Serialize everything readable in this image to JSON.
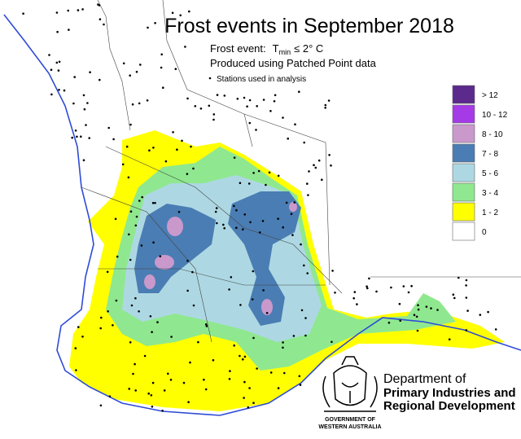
{
  "title": "Frost events in September 2018",
  "subtitle": {
    "lead": "Frost event:",
    "symbol": "T",
    "subscript": "min",
    "condition": "≤ 2° C"
  },
  "source": "Produced using Patched Point data",
  "stations_note": "Stations used in analysis",
  "legend": [
    {
      "label": "> 12",
      "color": "#5b2a8c"
    },
    {
      "label": "10 - 12",
      "color": "#a43be6"
    },
    {
      "label": "8 - 10",
      "color": "#c999cc"
    },
    {
      "label": "7 - 8",
      "color": "#4a7db3"
    },
    {
      "label": "5 - 6",
      "color": "#add8e3"
    },
    {
      "label": "3 - 4",
      "color": "#8fe88f"
    },
    {
      "label": "1 - 2",
      "color": "#ffff00"
    },
    {
      "label": "0",
      "color": "#ffffff"
    }
  ],
  "logo": {
    "department": [
      "Department of",
      "Primary Industries and",
      "Regional Development"
    ],
    "government": [
      "GOVERNMENT OF",
      "WESTERN AUSTRALIA"
    ]
  }
}
